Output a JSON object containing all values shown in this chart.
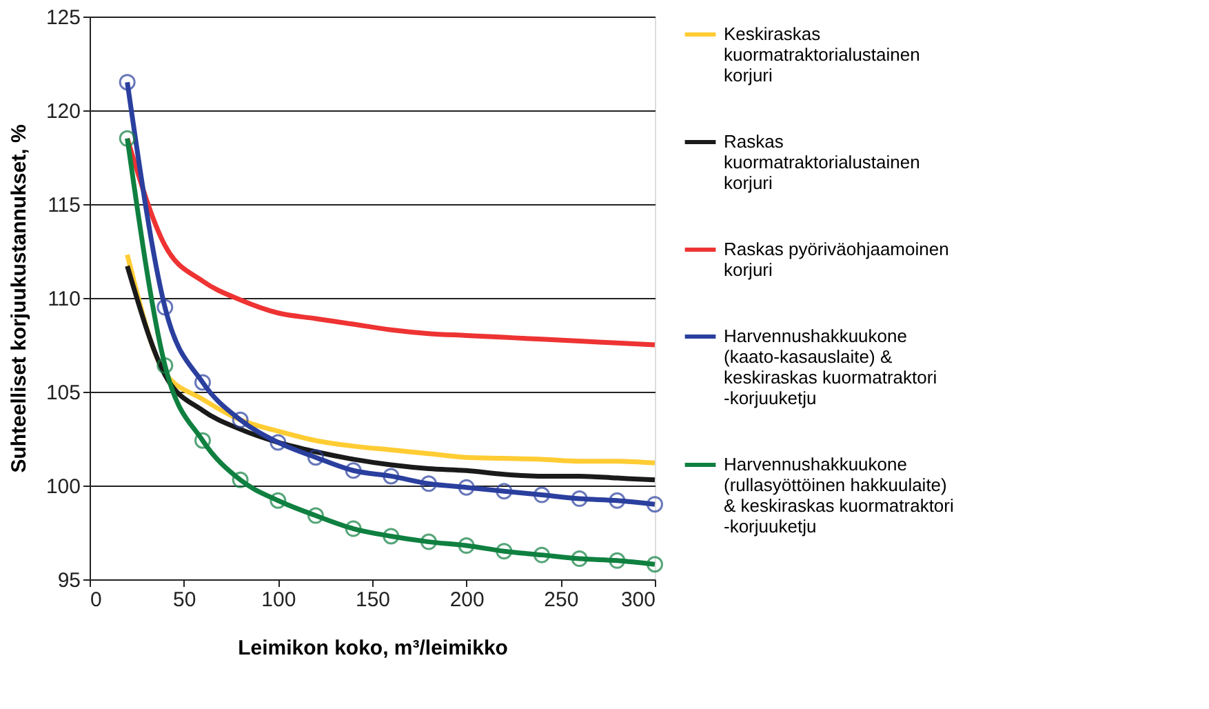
{
  "chart_data": {
    "type": "line",
    "xlabel": "Leimikon koko, m³/leimikko",
    "ylabel": "Suhteelliset korjuukustannukset, %",
    "x": [
      20,
      40,
      60,
      80,
      100,
      120,
      140,
      160,
      180,
      200,
      220,
      240,
      260,
      280,
      300
    ],
    "xlim": [
      0,
      300
    ],
    "xticks": [
      0,
      50,
      100,
      150,
      200,
      250,
      300
    ],
    "ylim": [
      95,
      125
    ],
    "yticks": [
      95,
      100,
      105,
      110,
      115,
      120,
      125
    ],
    "grid": "y",
    "legend": "right",
    "series": [
      {
        "name": "Keskiraskas kuormatraktorialustainen korjuri",
        "color": "#ffcc33",
        "marker": "none",
        "values": [
          112.3,
          106.0,
          104.6,
          103.5,
          102.9,
          102.4,
          102.1,
          101.9,
          101.7,
          101.5,
          101.45,
          101.4,
          101.3,
          101.3,
          101.2
        ]
      },
      {
        "name": "Raskas kuormatraktorialustainen korjuri",
        "color": "#1a1a1a",
        "marker": "none",
        "values": [
          111.7,
          105.9,
          104.0,
          103.0,
          102.3,
          101.8,
          101.4,
          101.1,
          100.9,
          100.8,
          100.6,
          100.5,
          100.5,
          100.4,
          100.3
        ]
      },
      {
        "name": "Raskas pyöriväohjaamoinen korjuri",
        "color": "#ee3333",
        "marker": "none",
        "values": [
          118.5,
          112.8,
          110.9,
          109.9,
          109.2,
          108.9,
          108.6,
          108.3,
          108.1,
          108.0,
          107.9,
          107.8,
          107.7,
          107.6,
          107.5
        ]
      },
      {
        "name": "Harvennushakkuukone (kaato-kasauslaite) & keskiraskas kuormatraktori -korjuuketju",
        "color": "#2a3f9e",
        "marker": "circle",
        "values": [
          121.5,
          109.5,
          105.5,
          103.5,
          102.3,
          101.5,
          100.8,
          100.5,
          100.1,
          99.9,
          99.7,
          99.5,
          99.3,
          99.2,
          99.0
        ]
      },
      {
        "name": "Harvennushakkuukone (rullasyöttöinen hakkuulaite) & keskiraskas kuormatraktori -korjuuketju",
        "color": "#0f8040",
        "marker": "circle",
        "values": [
          118.5,
          106.4,
          102.4,
          100.3,
          99.2,
          98.4,
          97.7,
          97.3,
          97.0,
          96.8,
          96.5,
          96.3,
          96.1,
          96.0,
          95.8
        ]
      }
    ]
  }
}
